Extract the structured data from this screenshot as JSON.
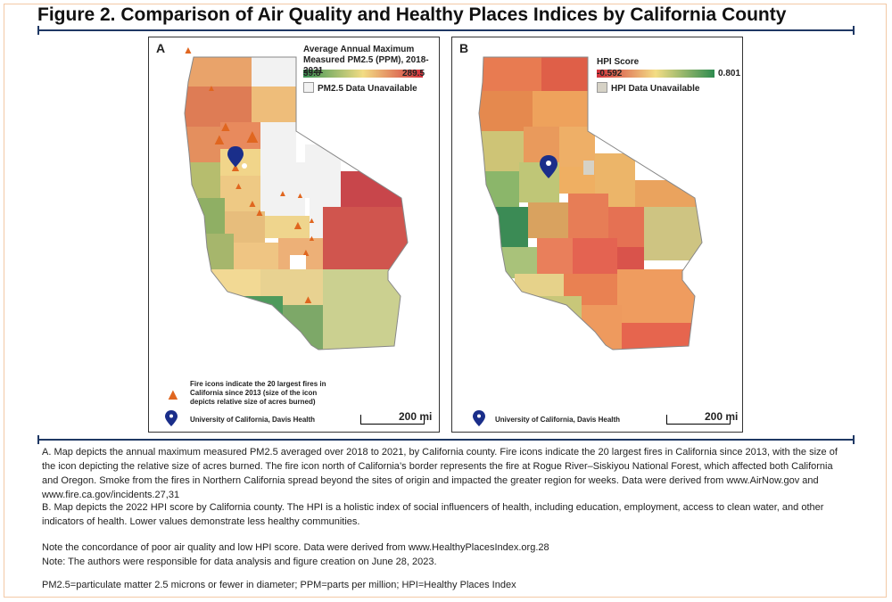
{
  "figure_title": "Figure 2. Comparison of Air Quality and Healthy Places Indices by California County",
  "panel_a": {
    "letter": "A",
    "legend_title_line1": "Average Annual Maximum",
    "legend_title_line2": "Measured PM2.5 (PPM), 2018-2021",
    "min_label": "39.8",
    "max_label": "289.5",
    "unavailable_label": "PM2.5 Data Unavailable",
    "fire_note": "Fire icons indicate the 20 largest fires in California since 2013 (size of the icon depicts relative size of acres burned)",
    "pin_label": "University of California, Davis Health",
    "scale_label": "200 mi",
    "colors": {
      "low": "#3a9455",
      "mid": "#f2dc84",
      "high": "#d2313c",
      "unavailable": "#f2f2f2"
    }
  },
  "panel_b": {
    "letter": "B",
    "legend_title": "HPI Score",
    "min_label": "-0.592",
    "max_label": "0.801",
    "unavailable_label": "HPI Data Unavailable",
    "pin_label": "University of California, Davis Health",
    "scale_label": "200 mi",
    "colors": {
      "low": "#d2313c",
      "mid": "#f3dd85",
      "high": "#2e8b4f",
      "unavailable": "#d6d2c6"
    }
  },
  "caption": {
    "para_a": "A. Map depicts the annual maximum measured PM2.5 averaged over 2018 to 2021, by California county. Fire icons indicate the 20 largest fires in California since 2013, with the size of the icon depicting the relative size of acres burned. The fire icon north of California’s border represents the fire at Rogue River–Siskiyou National Forest, which affected both California and Oregon. Smoke from the fires in Northern California spread beyond the sites of origin and impacted the greater region for weeks. Data were derived from www.AirNow.gov and www.fire.ca.gov/incidents.27,31",
    "para_b": "B. Map depicts the 2022 HPI score by California county. The HPI is a holistic index of social influencers of health, including education, employment, access to clean water, and other indicators of health. Lower values demonstrate less healthy communities.",
    "note1": "Note the concordance of poor air quality and low HPI score. Data were derived from www.HealthyPlacesIndex.org.28",
    "note2": "Note: The authors were responsible for data analysis and figure creation on June 28, 2023.",
    "abbrev": "PM2.5=particulate matter 2.5 microns or fewer in diameter; PPM=parts per million; HPI=Healthy Places Index"
  }
}
